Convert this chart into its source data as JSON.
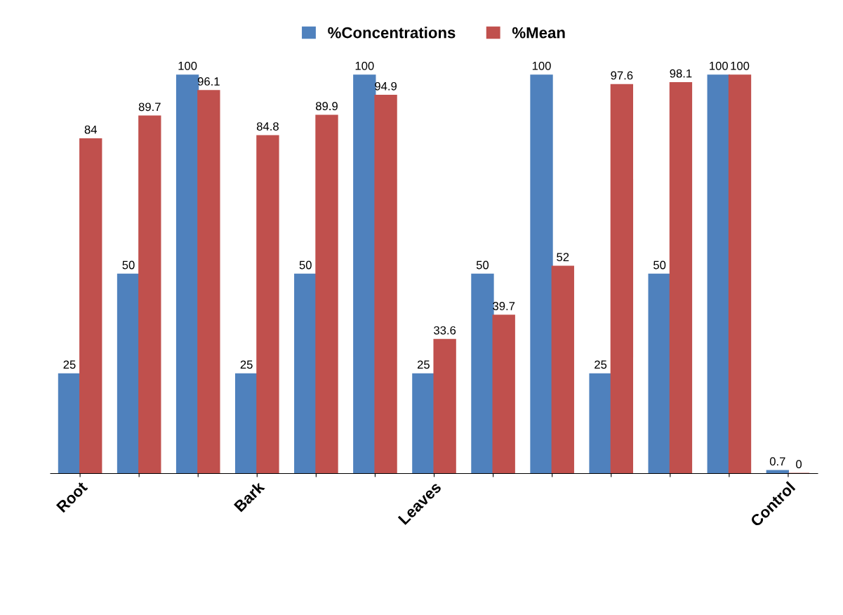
{
  "chart_data": {
    "type": "bar",
    "categories": [
      "Root",
      null,
      null,
      "Bark",
      null,
      null,
      "Leaves",
      null,
      null,
      null,
      null,
      null,
      "Control"
    ],
    "series": [
      {
        "name": "%Concentrations",
        "color": "#4f81bd",
        "values": [
          25,
          50,
          100,
          25,
          50,
          100,
          25,
          50,
          100,
          25,
          50,
          100,
          0.7
        ]
      },
      {
        "name": "%Mean",
        "color": "#c0504d",
        "values": [
          84,
          89.7,
          96.1,
          84.8,
          89.9,
          94.9,
          33.6,
          39.7,
          52,
          97.6,
          98.1,
          100,
          0
        ]
      }
    ],
    "data_labels": true,
    "legend": "top",
    "grid": false,
    "tick_labels": "x"
  }
}
